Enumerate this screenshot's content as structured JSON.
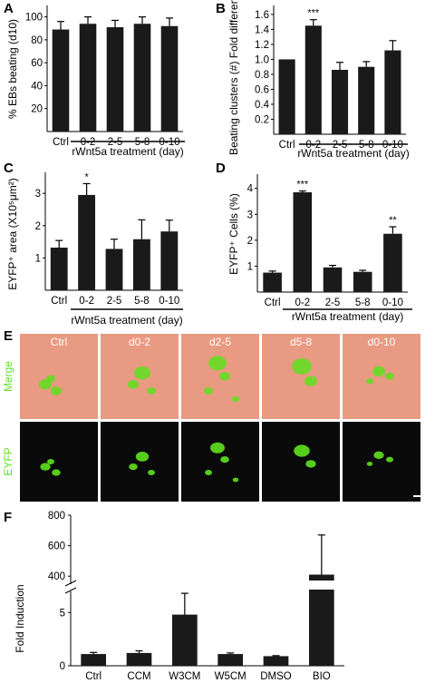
{
  "panel_letters": [
    "A",
    "B",
    "C",
    "D",
    "E",
    "F"
  ],
  "colors": {
    "bar": "#1a1a1a",
    "micro_merge_bg": "#e99a82",
    "micro_eyfp_bg": "#0a0a0a",
    "green": "#5ee11f"
  },
  "chart_data": [
    {
      "type": "bar",
      "panel": "A",
      "categories": [
        "Ctrl",
        "0-2",
        "2-5",
        "5-8",
        "0-10"
      ],
      "values": [
        89,
        94,
        91,
        94,
        92
      ],
      "errors": [
        7,
        6,
        6,
        6,
        7
      ],
      "ylabel": "% EBs beating (d10)",
      "xlabel": "rWnt5a treatment (day)",
      "yticks": [
        "20",
        "40",
        "60",
        "80",
        "100"
      ],
      "ylim": [
        0,
        110
      ],
      "annotations": [
        "",
        "",
        "",
        "",
        ""
      ]
    },
    {
      "type": "bar",
      "panel": "B",
      "categories": [
        "Ctrl",
        "0-2",
        "2-5",
        "5-8",
        "0-10"
      ],
      "values": [
        1.0,
        1.45,
        0.86,
        0.9,
        1.12
      ],
      "errors": [
        0,
        0.08,
        0.1,
        0.07,
        0.13
      ],
      "ylabel": "Beating clusters (#) Fold difference",
      "xlabel": "rWnt5a treatment (day)",
      "yticks": [
        "0.2",
        "0.4",
        "0.6",
        "0.8",
        "1.0",
        "1.2",
        "1.4",
        "1.6"
      ],
      "ylim": [
        0,
        1.72
      ],
      "annotations": [
        "",
        "***",
        "",
        "",
        ""
      ]
    },
    {
      "type": "bar",
      "panel": "C",
      "categories": [
        "Ctrl",
        "0-2",
        "2-5",
        "5-8",
        "0-10"
      ],
      "values": [
        1.32,
        2.95,
        1.28,
        1.58,
        1.82
      ],
      "errors": [
        0.22,
        0.35,
        0.3,
        0.6,
        0.35
      ],
      "ylabel": "EYFP⁺ area (X10⁵μm²)",
      "xlabel": "rWnt5a treatment (day)",
      "yticks": [
        "1",
        "2",
        "3"
      ],
      "ylim": [
        0,
        3.65
      ],
      "annotations": [
        "",
        "*",
        "",
        "",
        ""
      ]
    },
    {
      "type": "bar",
      "panel": "D",
      "categories": [
        "Ctrl",
        "0-2",
        "2-5",
        "5-8",
        "0-10"
      ],
      "values": [
        0.75,
        3.85,
        0.95,
        0.78,
        2.25
      ],
      "errors": [
        0.06,
        0.05,
        0.08,
        0.06,
        0.27
      ],
      "ylabel": "EYFP⁺ Cells (%)",
      "xlabel": "rWnt5a treatment (day)",
      "yticks": [
        "1",
        "2",
        "3",
        "4"
      ],
      "ylim": [
        0,
        4.55
      ],
      "annotations": [
        "",
        "***",
        "",
        "",
        "**"
      ]
    },
    {
      "type": "bar",
      "panel": "F",
      "categories": [
        "Ctrl",
        "CCM",
        "W3CM",
        "W5CM",
        "DMSO",
        "BIO"
      ],
      "values": [
        1.1,
        1.2,
        4.8,
        1.1,
        0.9,
        410
      ],
      "errors": [
        0.15,
        0.2,
        2.0,
        0.1,
        0.05,
        260
      ],
      "ylabel": "Fold Induction",
      "yticks_lower": [
        "0",
        "5"
      ],
      "yticks_upper": [
        "400",
        "600",
        "800"
      ],
      "ylim_lower": [
        0,
        8
      ],
      "ylim_upper": [
        300,
        800
      ],
      "axis_break": true
    }
  ],
  "micrographs": {
    "columns": [
      "Ctrl",
      "d0-2",
      "d2-5",
      "d5-8",
      "d0-10"
    ],
    "rows": [
      "Merge",
      "EYFP"
    ]
  }
}
